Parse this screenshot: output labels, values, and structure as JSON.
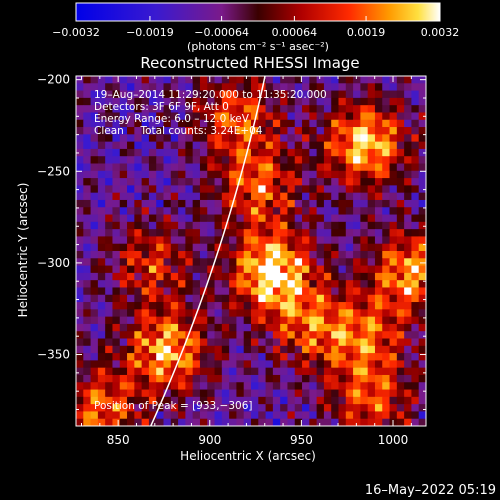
{
  "chart_data": {
    "type": "heatmap",
    "title": "Reconstructed RHESSI Image",
    "xlabel": "Heliocentric X (arcsec)",
    "ylabel": "Heliocentric Y (arcsec)",
    "xlim": [
      827,
      1018
    ],
    "ylim": [
      -389,
      -198
    ],
    "xticks": [
      850,
      900,
      950,
      1000
    ],
    "yticks": [
      -200,
      -250,
      -300,
      -350
    ],
    "xtick_labels": [
      "850",
      "900",
      "950",
      "1000"
    ],
    "ytick_labels": [
      "−200",
      "−250",
      "−300",
      "−350"
    ],
    "colorbar": {
      "range": [
        -0.0032,
        0.0032
      ],
      "ticks": [
        -0.0032,
        -0.0019,
        -0.00064,
        0.00064,
        0.0019,
        0.0032
      ],
      "tick_labels": [
        "−0.0032",
        "−0.0019",
        "−0.00064",
        "0.00064",
        "0.0019",
        "0.0032"
      ],
      "units_label": "(photons cm⁻² s⁻¹ asec⁻²)"
    },
    "annotations": [
      "19–Aug–2014 11:29:20.000 to 11:35:20.000",
      "Detectors: 3F 6F 9F, Att 0",
      "Energy Range: 6.0 – 12.0 keV",
      "Clean     Total counts: 3.24E+04"
    ],
    "peak_label": "Position of Peak = [933,−306]",
    "peak_position": [
      933,
      -306
    ],
    "sources": [
      {
        "x": 934,
        "y": -305,
        "value": 0.0032
      },
      {
        "x": 985,
        "y": -235,
        "value": 0.0028
      },
      {
        "x": 877,
        "y": -348,
        "value": 0.0025
      },
      {
        "x": 1010,
        "y": -305,
        "value": 0.0023
      },
      {
        "x": 926,
        "y": -258,
        "value": 0.0017
      },
      {
        "x": 915,
        "y": -220,
        "value": 0.0016
      },
      {
        "x": 840,
        "y": -380,
        "value": 0.0018
      },
      {
        "x": 988,
        "y": -375,
        "value": 0.0015
      },
      {
        "x": 985,
        "y": -340,
        "value": 0.0014
      },
      {
        "x": 868,
        "y": -300,
        "value": 0.0012
      },
      {
        "x": 955,
        "y": -335,
        "value": 0.0013
      }
    ],
    "grid": false
  },
  "timestamp": "16–May–2022 05:19"
}
